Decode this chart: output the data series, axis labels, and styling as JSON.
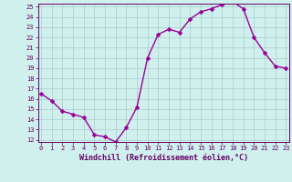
{
  "x": [
    0,
    1,
    2,
    3,
    4,
    5,
    6,
    7,
    8,
    9,
    10,
    11,
    12,
    13,
    14,
    15,
    16,
    17,
    18,
    19,
    20,
    21,
    22,
    23
  ],
  "y": [
    16.5,
    15.8,
    14.8,
    14.5,
    14.2,
    12.5,
    12.3,
    11.8,
    13.2,
    15.2,
    20.0,
    22.3,
    22.8,
    22.5,
    23.8,
    24.5,
    24.8,
    25.2,
    25.5,
    24.8,
    22.0,
    20.5,
    19.2,
    19.0
  ],
  "line_color": "#990099",
  "marker": "D",
  "marker_size": 2.5,
  "bg_color": "#cff0ec",
  "grid_color": "#aacccc",
  "xlabel": "Windchill (Refroidissement éolien,°C)",
  "ylabel": "",
  "ylim_min": 12,
  "ylim_max": 25,
  "xlim_min": 0,
  "xlim_max": 23,
  "yticks": [
    12,
    13,
    14,
    15,
    16,
    17,
    18,
    19,
    20,
    21,
    22,
    23,
    24,
    25
  ],
  "xticks": [
    0,
    1,
    2,
    3,
    4,
    5,
    6,
    7,
    8,
    9,
    10,
    11,
    12,
    13,
    14,
    15,
    16,
    17,
    18,
    19,
    20,
    21,
    22,
    23
  ],
  "tick_fontsize": 5.0,
  "xlabel_fontsize": 6.0,
  "spine_color": "#660066",
  "linewidth": 1.0
}
